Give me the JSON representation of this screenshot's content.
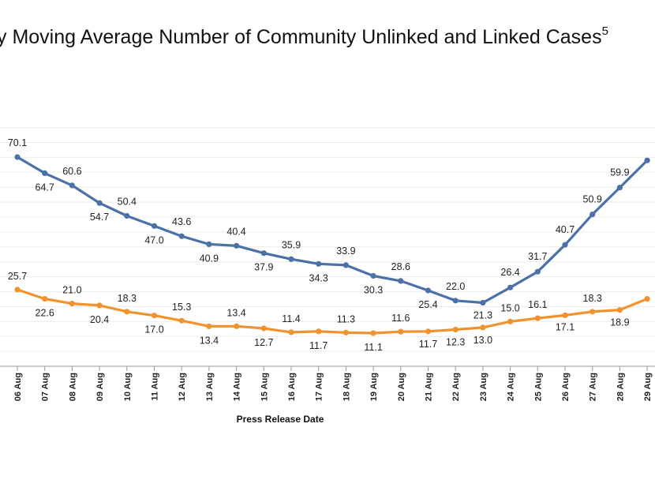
{
  "chart_data": {
    "type": "line",
    "title": "y Moving Average Number of Community Unlinked and Linked Cases",
    "title_superscript": "5",
    "xlabel": "Press Release Date",
    "ylabel": "",
    "categories": [
      "06 Aug",
      "07 Aug",
      "08 Aug",
      "09 Aug",
      "10 Aug",
      "11 Aug",
      "12 Aug",
      "13 Aug",
      "14 Aug",
      "15 Aug",
      "16 Aug",
      "17 Aug",
      "18 Aug",
      "19 Aug",
      "20 Aug",
      "21 Aug",
      "22 Aug",
      "23 Aug",
      "24 Aug",
      "25 Aug",
      "26 Aug",
      "27 Aug",
      "28 Aug",
      "29 Aug"
    ],
    "series": [
      {
        "color": "#4a72a8",
        "values": [
          70.1,
          64.7,
          60.6,
          54.7,
          50.4,
          47.0,
          43.6,
          40.9,
          40.4,
          37.9,
          35.9,
          34.3,
          33.9,
          30.3,
          28.6,
          25.4,
          22.0,
          21.3,
          26.4,
          31.7,
          40.7,
          50.9,
          59.9,
          69.0
        ],
        "labels": [
          "70.1",
          "64.7",
          "60.6",
          "54.7",
          "50.4",
          "47.0",
          "43.6",
          "40.9",
          "40.4",
          "37.9",
          "35.9",
          "34.3",
          "33.9",
          "30.3",
          "28.6",
          "25.4",
          "22.0",
          "21.3",
          "26.4",
          "31.7",
          "40.7",
          "50.9",
          "59.9",
          ""
        ]
      },
      {
        "color": "#f0922e",
        "values": [
          25.7,
          22.6,
          21.0,
          20.4,
          18.3,
          17.0,
          15.3,
          13.4,
          13.4,
          12.7,
          11.4,
          11.7,
          11.3,
          11.1,
          11.6,
          11.7,
          12.3,
          13.0,
          15.0,
          16.1,
          17.1,
          18.3,
          18.9,
          22.6
        ],
        "labels": [
          "25.7",
          "22.6",
          "21.0",
          "20.4",
          "18.3",
          "17.0",
          "15.3",
          "13.4",
          "13.4",
          "12.7",
          "11.4",
          "11.7",
          "11.3",
          "11.1",
          "11.6",
          "11.7",
          "12.3",
          "13.0",
          "15.0",
          "16.1",
          "17.1",
          "18.3",
          "18.9",
          ""
        ]
      }
    ],
    "ylim": [
      0,
      80
    ],
    "grid": true,
    "legend": "none"
  }
}
